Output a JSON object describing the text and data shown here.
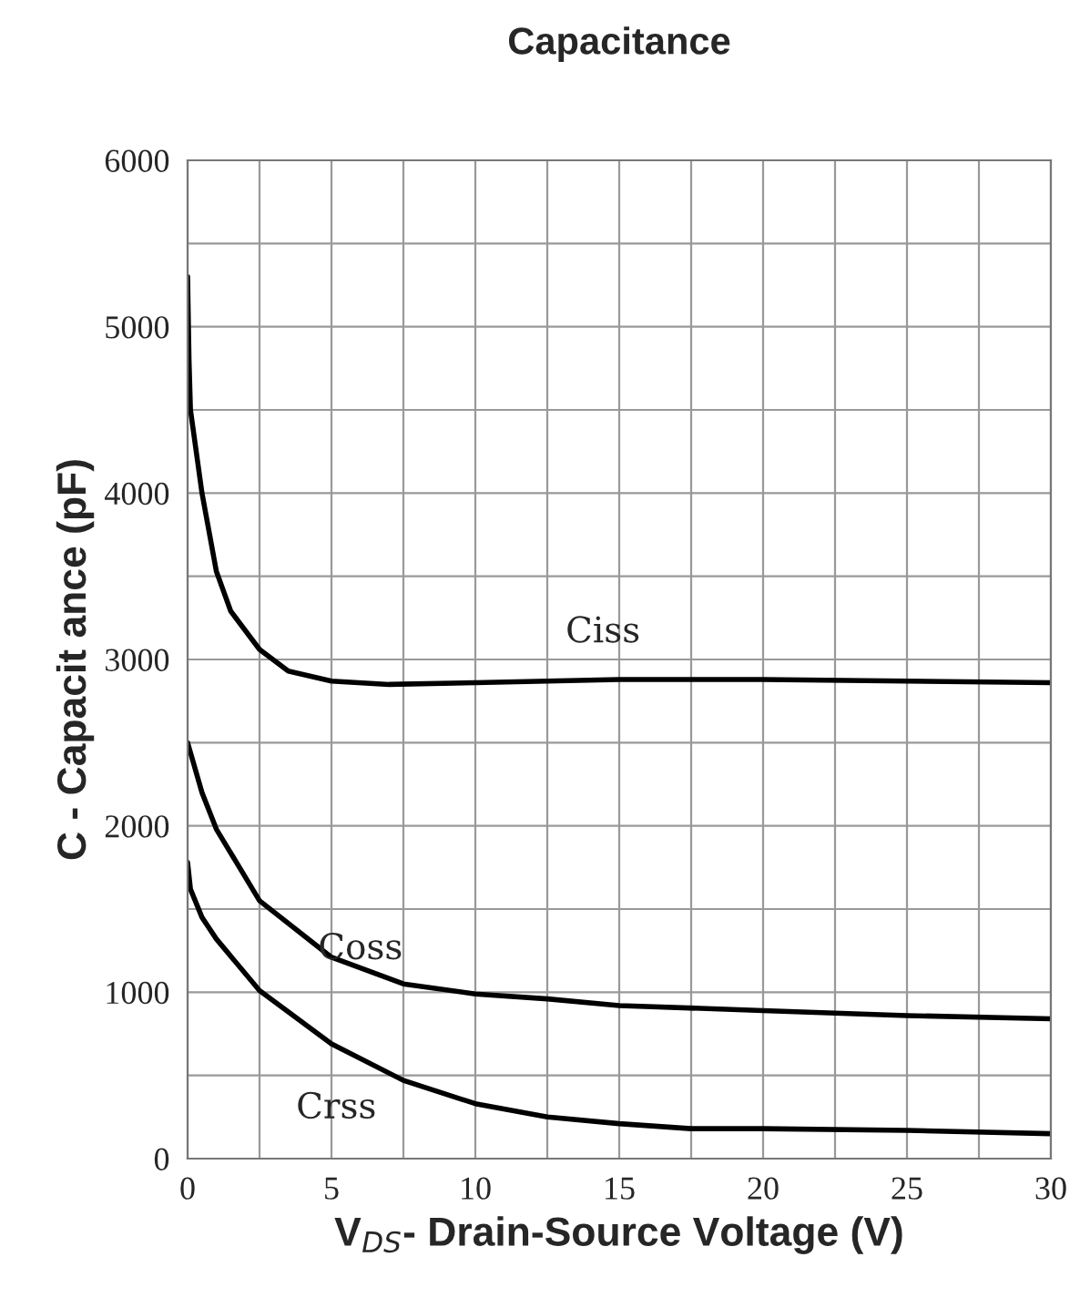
{
  "chart_data": {
    "type": "line",
    "title": "Capacitance",
    "xlabel": "V$_{DS}$- Drain-Source Voltage (V)",
    "ylabel": "C - Capacit ance (pF)",
    "xlim": [
      0,
      30
    ],
    "ylim": [
      0,
      6000
    ],
    "xticks": [
      0,
      5,
      10,
      15,
      20,
      25,
      30
    ],
    "yticks": [
      0,
      1000,
      2000,
      3000,
      4000,
      5000,
      6000
    ],
    "grid": true,
    "legend": false,
    "marker": "none",
    "line_style": "solid",
    "series": [
      {
        "name": "Ciss",
        "color": "#000000",
        "x": [
          0,
          0.05,
          0.1,
          0.5,
          1,
          1.5,
          2.5,
          3.5,
          5,
          7,
          10,
          15,
          20,
          25,
          30
        ],
        "values": [
          5300,
          4800,
          4500,
          4000,
          3530,
          3290,
          3060,
          2930,
          2870,
          2850,
          2860,
          2880,
          2880,
          2870,
          2860
        ]
      },
      {
        "name": "Coss",
        "color": "#000000",
        "x": [
          0,
          0.5,
          1,
          2.5,
          5,
          7.5,
          10,
          12.5,
          15,
          20,
          25,
          30
        ],
        "values": [
          2500,
          2200,
          1980,
          1550,
          1210,
          1050,
          990,
          960,
          920,
          890,
          860,
          840
        ]
      },
      {
        "name": "Crss",
        "color": "#000000",
        "x": [
          0,
          0.1,
          0.5,
          1,
          2.5,
          5,
          7.5,
          10,
          12.5,
          15,
          17.5,
          20,
          25,
          30
        ],
        "values": [
          1780,
          1620,
          1450,
          1320,
          1010,
          690,
          470,
          330,
          250,
          210,
          180,
          180,
          170,
          150
        ]
      }
    ]
  }
}
